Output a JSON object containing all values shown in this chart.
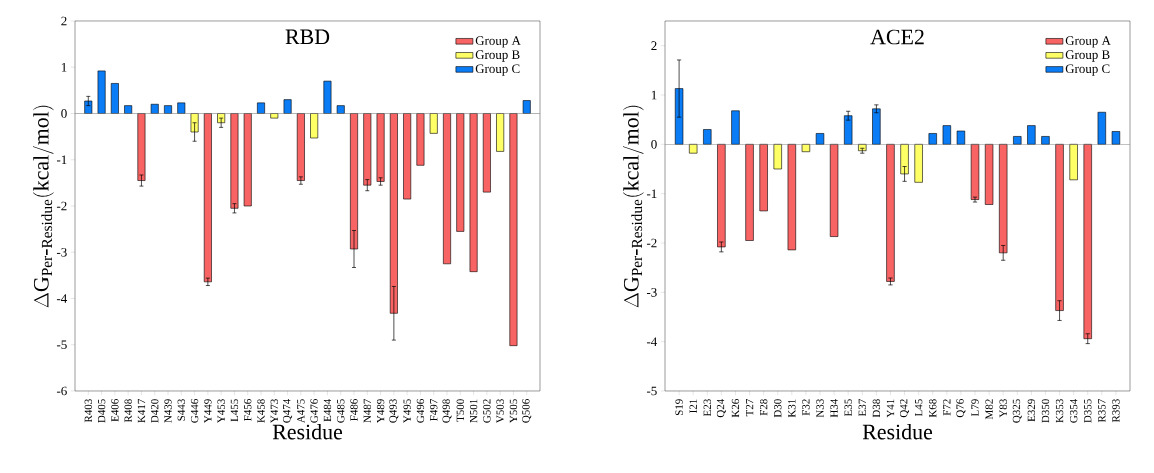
{
  "chart_data": [
    {
      "type": "bar",
      "title": "RBD",
      "xlabel": "Residue",
      "ylabel": "\\Delta\\mathrm{G}_{\\mathrm{Per}\\mbox{-}\\mathrm{Residue}}(\\mathrm{kcal/mol})",
      "legend": "top right",
      "categories": [
        "R403",
        "D405",
        "E406",
        "R408",
        "K417",
        "D420",
        "N439",
        "S443",
        "G446",
        "Y449",
        "Y453",
        "L455",
        "F456",
        "K458",
        "Y473",
        "Q474",
        "A475",
        "G476",
        "E484",
        "G485",
        "F486",
        "N487",
        "Y489",
        "Q493",
        "Y495",
        "G496",
        "F497",
        "Q498",
        "T500",
        "N501",
        "G502",
        "V503",
        "Y505",
        "Q506"
      ],
      "ylim": [
        -6,
        2
      ],
      "yticks": [
        -6,
        -5,
        -4,
        -3,
        -2,
        -1,
        0,
        1,
        2
      ],
      "series": [
        {
          "name": "Group A",
          "color": "#f86464",
          "values": [
            null,
            null,
            null,
            null,
            -1.45,
            null,
            null,
            null,
            null,
            -3.64,
            null,
            -2.05,
            -2.0,
            null,
            null,
            null,
            -1.45,
            null,
            null,
            null,
            -2.93,
            -1.55,
            -1.47,
            -4.32,
            -1.85,
            -1.12,
            null,
            -3.25,
            -2.55,
            -3.42,
            -1.7,
            null,
            -5.02,
            null
          ],
          "errors": [
            null,
            null,
            null,
            null,
            0.12,
            null,
            null,
            null,
            null,
            0.08,
            null,
            0.1,
            null,
            null,
            null,
            null,
            0.08,
            null,
            null,
            null,
            0.4,
            0.12,
            0.08,
            0.58,
            null,
            null,
            null,
            null,
            null,
            null,
            null,
            null,
            null,
            null
          ]
        },
        {
          "name": "Group B",
          "color": "#ffff66",
          "values": [
            null,
            null,
            null,
            null,
            null,
            null,
            null,
            null,
            -0.4,
            null,
            -0.2,
            null,
            null,
            null,
            -0.1,
            null,
            null,
            -0.53,
            null,
            null,
            null,
            null,
            null,
            null,
            null,
            null,
            -0.43,
            null,
            null,
            null,
            null,
            -0.82,
            null,
            null
          ],
          "errors": [
            null,
            null,
            null,
            null,
            null,
            null,
            null,
            null,
            0.2,
            null,
            0.1,
            null,
            null,
            null,
            null,
            null,
            null,
            null,
            null,
            null,
            null,
            null,
            null,
            null,
            null,
            null,
            null,
            null,
            null,
            null,
            null,
            null,
            null,
            null
          ]
        },
        {
          "name": "Group C",
          "color": "#0a7cf5",
          "values": [
            0.27,
            0.92,
            0.65,
            0.17,
            null,
            0.2,
            0.17,
            0.23,
            null,
            null,
            null,
            null,
            null,
            0.23,
            null,
            0.3,
            null,
            null,
            0.7,
            0.17,
            null,
            null,
            null,
            null,
            null,
            null,
            null,
            null,
            null,
            null,
            null,
            null,
            null,
            0.28
          ],
          "errors": [
            0.1,
            null,
            null,
            null,
            null,
            null,
            null,
            null,
            null,
            null,
            null,
            null,
            null,
            null,
            null,
            null,
            null,
            null,
            null,
            null,
            null,
            null,
            null,
            null,
            null,
            null,
            null,
            null,
            null,
            null,
            null,
            null,
            null,
            null
          ]
        }
      ]
    },
    {
      "type": "bar",
      "title": "ACE2",
      "xlabel": "Residue",
      "ylabel": "\\Delta\\mathrm{G}_{\\mathrm{Per}\\mbox{-}\\mathrm{Residue}}(\\mathrm{kcal/mol})",
      "legend": "top right",
      "categories": [
        "S19",
        "I21",
        "E23",
        "Q24",
        "K26",
        "T27",
        "F28",
        "D30",
        "K31",
        "F32",
        "N33",
        "H34",
        "E35",
        "E37",
        "D38",
        "Y41",
        "Q42",
        "L45",
        "K68",
        "F72",
        "Q76",
        "L79",
        "M82",
        "Y83",
        "Q325",
        "E329",
        "D350",
        "K353",
        "G354",
        "D355",
        "R357",
        "R393"
      ],
      "ylim": [
        -5,
        2.5
      ],
      "yticks": [
        -5,
        -4,
        -3,
        -2,
        -1,
        0,
        1,
        2
      ],
      "series": [
        {
          "name": "Group A",
          "color": "#f86464",
          "values": [
            null,
            null,
            null,
            -2.08,
            null,
            -1.95,
            -1.35,
            null,
            -2.14,
            null,
            null,
            -1.87,
            null,
            null,
            null,
            -2.78,
            null,
            null,
            null,
            null,
            null,
            -1.12,
            -1.22,
            -2.2,
            null,
            null,
            null,
            -3.37,
            null,
            -3.94,
            null,
            null
          ],
          "errors": [
            null,
            null,
            null,
            0.1,
            null,
            null,
            null,
            null,
            null,
            null,
            null,
            null,
            null,
            null,
            null,
            0.07,
            null,
            null,
            null,
            null,
            null,
            0.05,
            null,
            0.15,
            null,
            null,
            null,
            0.2,
            null,
            0.1,
            null,
            null
          ]
        },
        {
          "name": "Group B",
          "color": "#ffff66",
          "values": [
            null,
            -0.18,
            null,
            null,
            null,
            null,
            null,
            -0.5,
            null,
            -0.15,
            null,
            null,
            null,
            -0.13,
            null,
            null,
            -0.6,
            -0.77,
            null,
            null,
            null,
            null,
            null,
            null,
            null,
            null,
            null,
            null,
            -0.72,
            null,
            null,
            null
          ],
          "errors": [
            null,
            null,
            null,
            null,
            null,
            null,
            null,
            null,
            null,
            null,
            null,
            null,
            null,
            0.05,
            null,
            null,
            0.15,
            null,
            null,
            null,
            null,
            null,
            null,
            null,
            null,
            null,
            null,
            null,
            null,
            null,
            null,
            null
          ]
        },
        {
          "name": "Group C",
          "color": "#0a7cf5",
          "values": [
            1.13,
            null,
            0.3,
            null,
            0.68,
            null,
            null,
            null,
            null,
            null,
            0.22,
            null,
            0.58,
            null,
            0.72,
            null,
            null,
            null,
            0.22,
            0.38,
            0.27,
            null,
            null,
            null,
            0.16,
            0.38,
            0.16,
            null,
            null,
            null,
            0.65,
            0.26
          ],
          "errors": [
            0.58,
            null,
            null,
            null,
            null,
            null,
            null,
            null,
            null,
            null,
            null,
            null,
            0.09,
            null,
            0.08,
            null,
            null,
            null,
            null,
            null,
            null,
            null,
            null,
            null,
            null,
            null,
            null,
            null,
            null,
            null,
            null,
            null
          ]
        }
      ]
    }
  ]
}
